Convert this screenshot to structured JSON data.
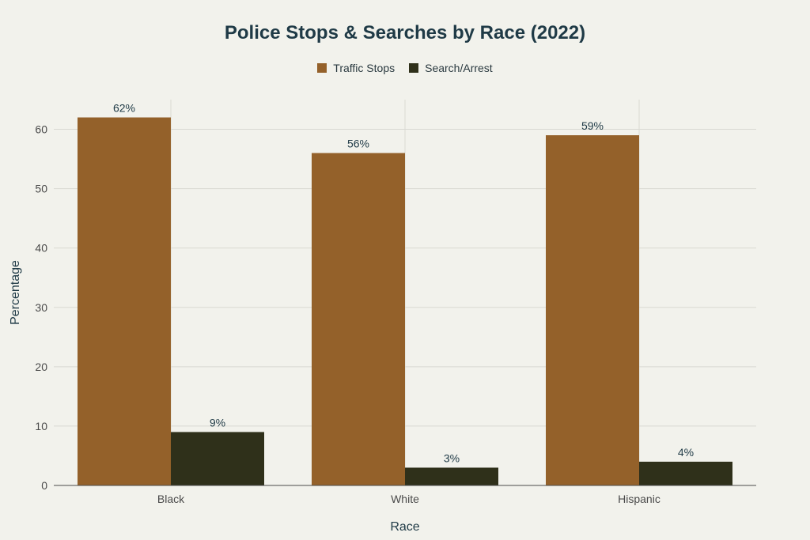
{
  "chart_data": {
    "type": "bar",
    "title": "Police Stops & Searches by Race (2022)",
    "xlabel": "Race",
    "ylabel": "Percentage",
    "categories": [
      "Black",
      "White",
      "Hispanic"
    ],
    "series": [
      {
        "name": "Traffic Stops",
        "values": [
          62,
          56,
          59
        ],
        "labels": [
          "62%",
          "56%",
          "59%"
        ],
        "color": "#94612a"
      },
      {
        "name": "Search/Arrest",
        "values": [
          9,
          3,
          4
        ],
        "labels": [
          "9%",
          "3%",
          "4%"
        ],
        "color": "#2f301a"
      }
    ],
    "ylim": [
      0,
      65
    ],
    "yticks": [
      0,
      10,
      20,
      30,
      40,
      50,
      60
    ],
    "grid": true,
    "legend_position": "top-center"
  },
  "colors": {
    "background": "#f2f2ec",
    "gridline": "#d9d9d2",
    "axis_line": "#4a4a4a",
    "title": "#1f3a46"
  }
}
